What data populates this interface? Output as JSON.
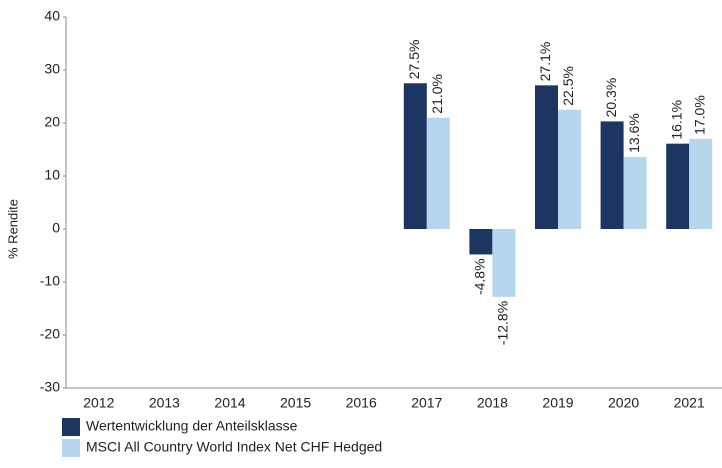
{
  "chart_data": {
    "type": "bar",
    "y_label": "% Rendite",
    "categories": [
      "2012",
      "2013",
      "2014",
      "2015",
      "2016",
      "2017",
      "2018",
      "2019",
      "2020",
      "2021"
    ],
    "series": [
      {
        "name": "Wertentwicklung der Anteilsklasse",
        "color": "#1c3661",
        "values": [
          null,
          null,
          null,
          null,
          null,
          27.5,
          -4.8,
          27.1,
          20.3,
          16.1
        ],
        "value_labels": [
          null,
          null,
          null,
          null,
          null,
          "27.5%",
          "-4.8%",
          "27.1%",
          "20.3%",
          "16.1%"
        ]
      },
      {
        "name": "MSCI All Country World Index Net CHF Hedged",
        "color": "#b5d7ee",
        "values": [
          null,
          null,
          null,
          null,
          null,
          21.0,
          -12.8,
          22.5,
          13.6,
          17.0
        ],
        "value_labels": [
          null,
          null,
          null,
          null,
          null,
          "21.0%",
          "-12.8%",
          "22.5%",
          "13.6%",
          "17.0%"
        ]
      }
    ],
    "ylim": [
      -30,
      40
    ],
    "yticks": [
      -30,
      -20,
      -10,
      0,
      10,
      20,
      30,
      40
    ],
    "grid": false,
    "legend": "bottom"
  }
}
